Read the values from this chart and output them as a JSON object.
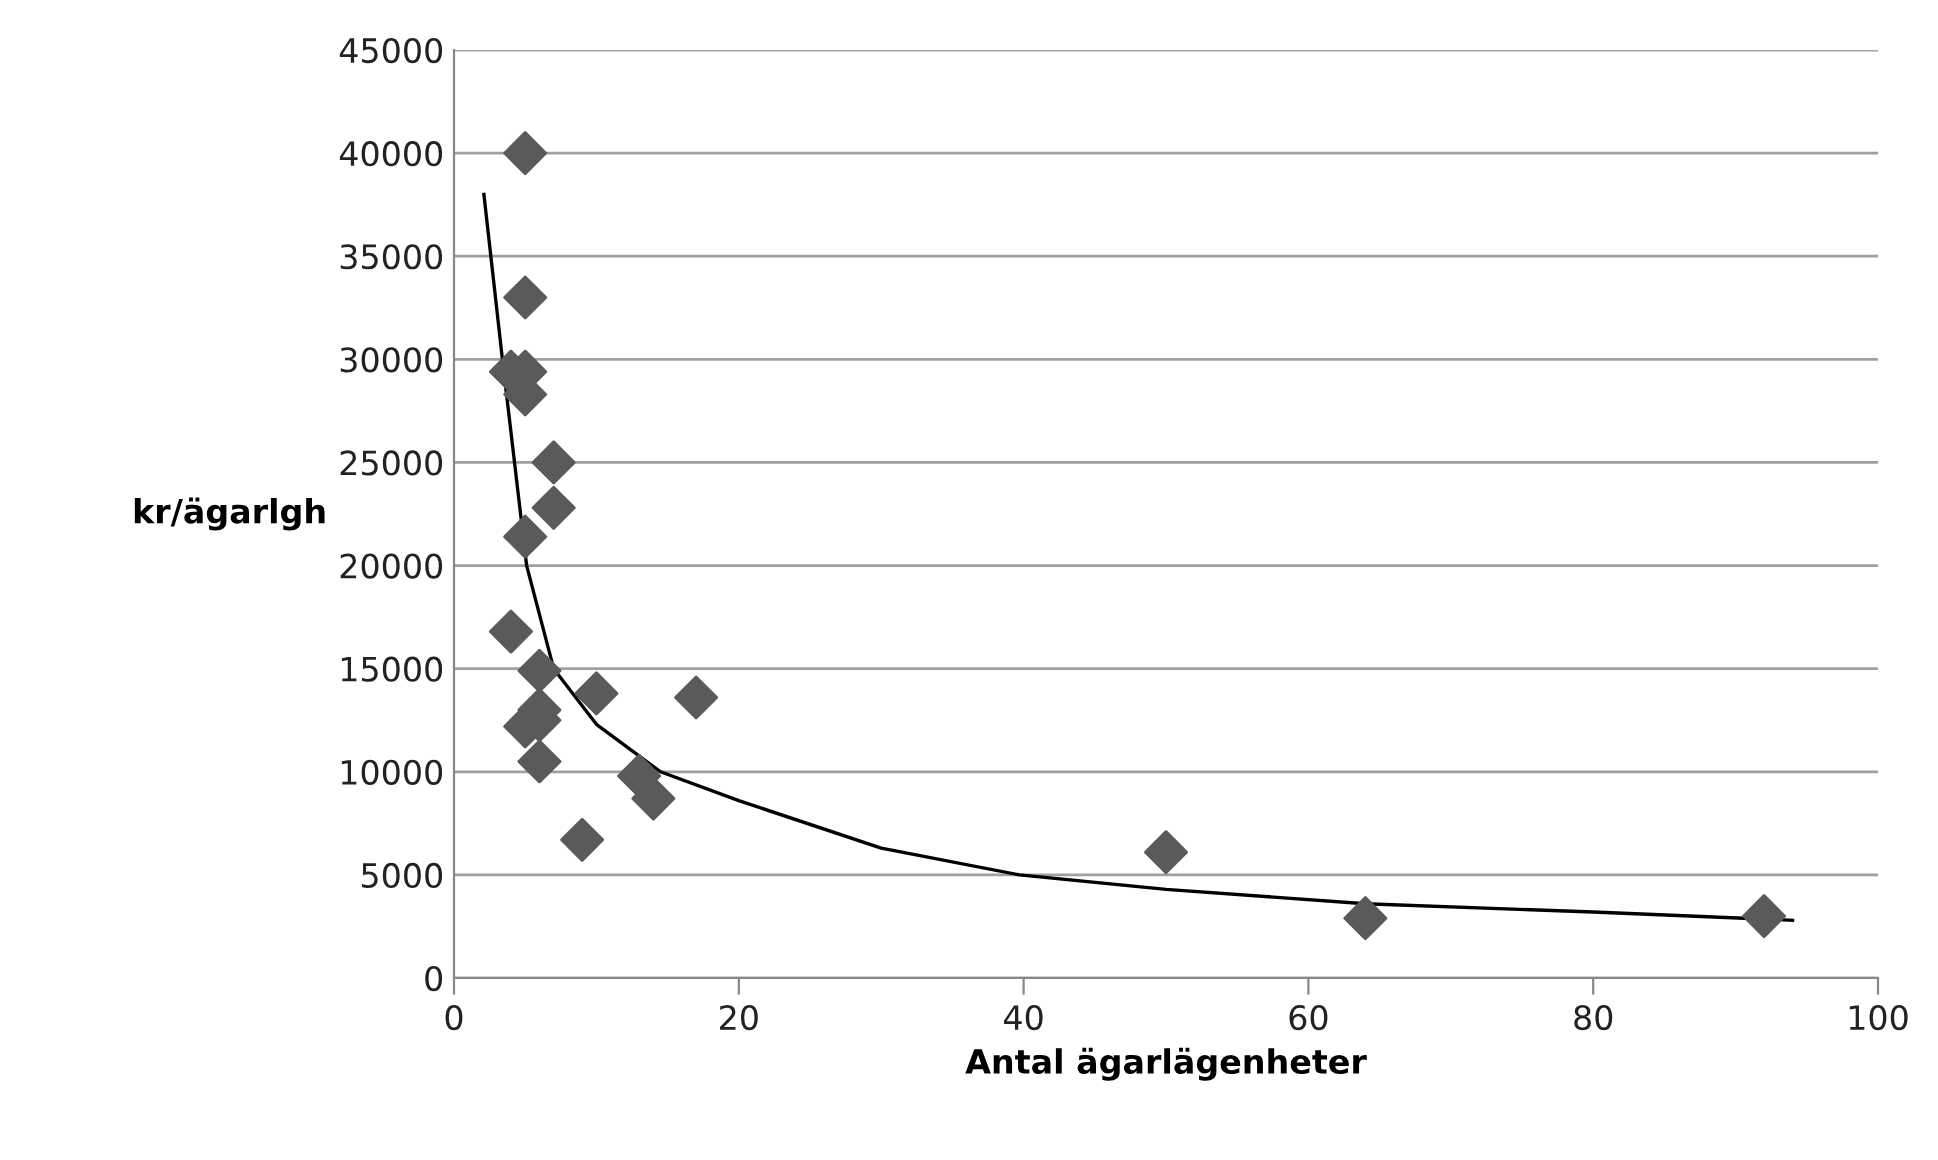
{
  "chart_data": {
    "type": "scatter",
    "xlabel": "Antal ägarlägenheter",
    "ylabel": "kr/ägarlgh",
    "xlim": [
      0,
      100
    ],
    "xticks": [
      0,
      20,
      40,
      60,
      80,
      100
    ],
    "ylim": [
      0,
      45000
    ],
    "yticks": [
      0,
      5000,
      10000,
      15000,
      20000,
      25000,
      30000,
      35000,
      40000,
      45000
    ],
    "grid": "y",
    "legend": false,
    "marker": "diamond",
    "series": [
      {
        "color": "#5a5a5a",
        "x": [
          5,
          5,
          4,
          5,
          5,
          7,
          7,
          5,
          4,
          6,
          6,
          6,
          5,
          6,
          10,
          17,
          13,
          14,
          9,
          50,
          64,
          92
        ],
        "values": [
          40000,
          33000,
          29400,
          29400,
          28300,
          25000,
          22800,
          21400,
          16800,
          14900,
          13000,
          12500,
          12200,
          10500,
          13800,
          13600,
          9800,
          8700,
          6700,
          6100,
          2900,
          3000
        ]
      },
      {
        "type": "line",
        "color": "#000000",
        "marker": "none",
        "line_style": "solid",
        "x": [
          2.1,
          3.4,
          5.1,
          7,
          10,
          14.5,
          20,
          30,
          39.7,
          50,
          64,
          80,
          94
        ],
        "values": [
          38000,
          30000,
          20000,
          15000,
          12300,
          10000,
          8600,
          6300,
          5000,
          4300,
          3600,
          3200,
          2800
        ]
      }
    ]
  }
}
